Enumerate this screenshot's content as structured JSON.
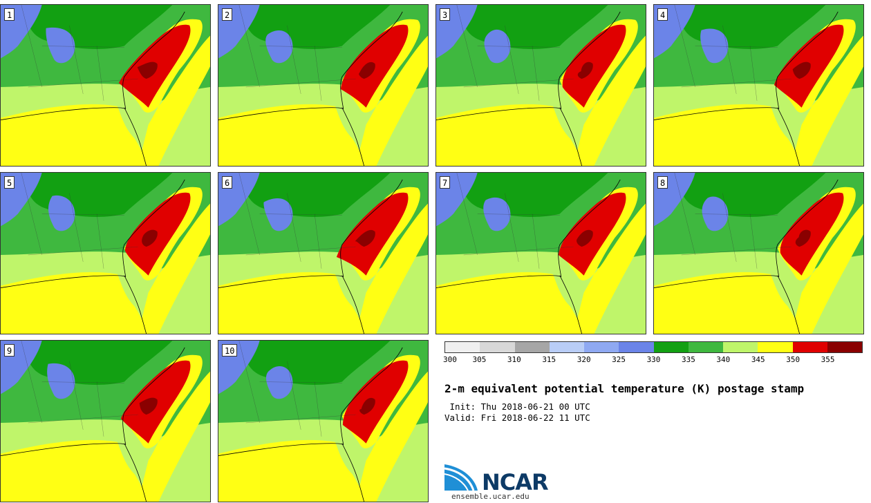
{
  "panels": [
    {
      "label": "1"
    },
    {
      "label": "2"
    },
    {
      "label": "3"
    },
    {
      "label": "4"
    },
    {
      "label": "5"
    },
    {
      "label": "6"
    },
    {
      "label": "7"
    },
    {
      "label": "8"
    },
    {
      "label": "9"
    },
    {
      "label": "10"
    }
  ],
  "legend": {
    "colors": [
      "#f0f0f0",
      "#d8d8d8",
      "#a6a6a6",
      "#b9cdf6",
      "#8fa9f2",
      "#6b84e8",
      "#12a012",
      "#3fb83f",
      "#bff56a",
      "#ffff14",
      "#e00000",
      "#8a0000"
    ],
    "ticks": [
      "300",
      "305",
      "310",
      "315",
      "320",
      "325",
      "330",
      "335",
      "340",
      "345",
      "350",
      "355"
    ]
  },
  "header": {
    "title": "2-m equivalent potential temperature (K) postage stamp",
    "init": " Init: Thu 2018-06-21 00 UTC",
    "valid": "Valid: Fri 2018-06-22 11 UTC"
  },
  "logo": {
    "name": "NCAR",
    "site": "ensemble.ucar.edu"
  }
}
